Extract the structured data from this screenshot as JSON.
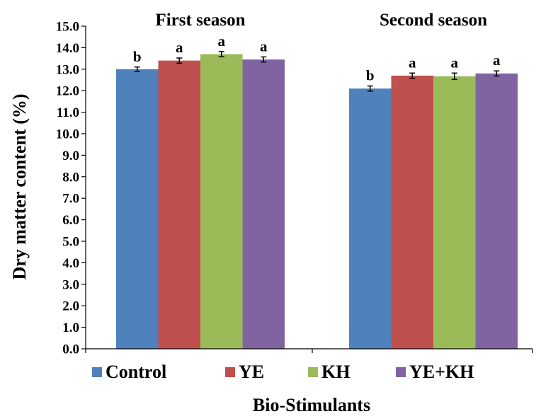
{
  "chart_data": {
    "type": "bar",
    "title": "",
    "xlabel": "Bio-Stimulants",
    "ylabel": "Dry matter content (%)",
    "ylim": [
      0,
      15
    ],
    "yticks": [
      "0.0",
      "1.0",
      "2.0",
      "3.0",
      "4.0",
      "5.0",
      "6.0",
      "7.0",
      "8.0",
      "9.0",
      "10.0",
      "11.0",
      "12.0",
      "13.0",
      "14.0",
      "15.0"
    ],
    "grid": false,
    "legend_position": "bottom",
    "categories": [
      "First season",
      "Second season"
    ],
    "series": [
      {
        "name": "Control",
        "color": "#4F81BD",
        "values": [
          13.0,
          12.1
        ],
        "errors": [
          0.1,
          0.12
        ],
        "letters": [
          "b",
          "b"
        ]
      },
      {
        "name": "YE",
        "color": "#C0504D",
        "values": [
          13.4,
          12.7
        ],
        "errors": [
          0.12,
          0.12
        ],
        "letters": [
          "a",
          "a"
        ]
      },
      {
        "name": "KH",
        "color": "#9BBB59",
        "values": [
          13.7,
          12.67
        ],
        "errors": [
          0.12,
          0.15
        ],
        "letters": [
          "a",
          "a"
        ]
      },
      {
        "name": "YE+KH",
        "color": "#8064A2",
        "values": [
          13.45,
          12.8
        ],
        "errors": [
          0.12,
          0.12
        ],
        "letters": [
          "a",
          "a"
        ]
      }
    ]
  }
}
